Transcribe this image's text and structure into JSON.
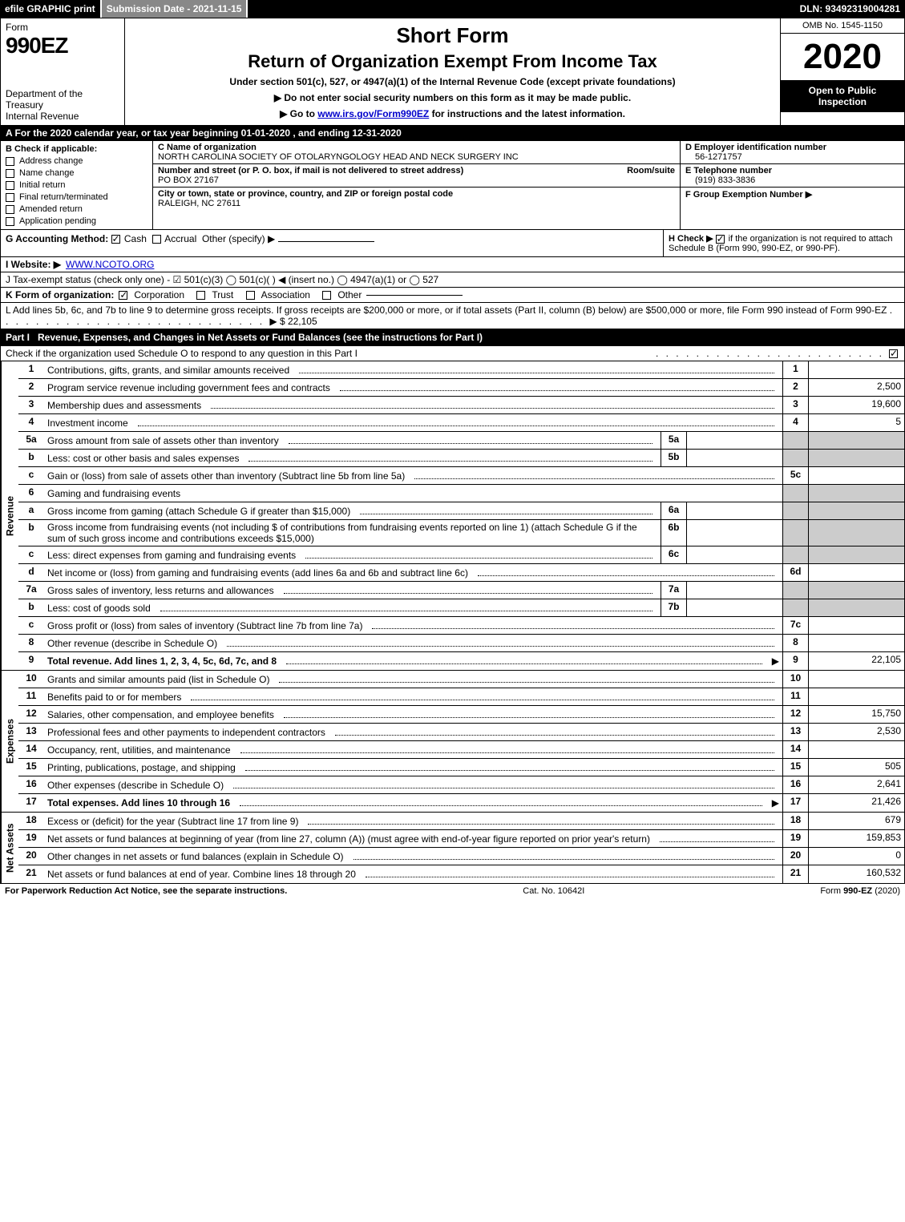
{
  "topbar": {
    "efile": "efile GRAPHIC print",
    "submission": "Submission Date - 2021-11-15",
    "dln": "DLN: 93492319004281"
  },
  "header": {
    "form_word": "Form",
    "form_number": "990EZ",
    "dept": "Department of the Treasury",
    "irs": "Internal Revenue",
    "short_form": "Short Form",
    "title": "Return of Organization Exempt From Income Tax",
    "subtitle": "Under section 501(c), 527, or 4947(a)(1) of the Internal Revenue Code (except private foundations)",
    "warn": "▶ Do not enter social security numbers on this form as it may be made public.",
    "goto_pre": "▶ Go to ",
    "goto_link": "www.irs.gov/Form990EZ",
    "goto_post": " for instructions and the latest information.",
    "omb": "OMB No. 1545-1150",
    "year": "2020",
    "open": "Open to Public Inspection"
  },
  "rowA": "A  For the 2020 calendar year, or tax year beginning 01-01-2020 , and ending 12-31-2020",
  "colB": {
    "hdr": "B  Check if applicable:",
    "items": [
      "Address change",
      "Name change",
      "Initial return",
      "Final return/terminated",
      "Amended return",
      "Application pending"
    ]
  },
  "colC": {
    "name_lbl": "C Name of organization",
    "name": "NORTH CAROLINA SOCIETY OF OTOLARYNGOLOGY HEAD AND NECK SURGERY INC",
    "addr_lbl": "Number and street (or P. O. box, if mail is not delivered to street address)",
    "room_lbl": "Room/suite",
    "addr": "PO BOX 27167",
    "city_lbl": "City or town, state or province, country, and ZIP or foreign postal code",
    "city": "RALEIGH, NC  27611"
  },
  "colDE": {
    "d_lbl": "D Employer identification number",
    "d_val": "56-1271757",
    "e_lbl": "E Telephone number",
    "e_val": "(919) 833-3836",
    "f_lbl": "F Group Exemption Number  ▶"
  },
  "lineG": {
    "pre": "G Accounting Method:",
    "cash": "Cash",
    "accrual": "Accrual",
    "other": "Other (specify) ▶"
  },
  "lineH": {
    "text": "H  Check ▶",
    "tail": "if the organization is not required to attach Schedule B (Form 990, 990-EZ, or 990-PF)."
  },
  "lineI": {
    "pre": "I Website: ▶",
    "link": "WWW.NCOTO.ORG"
  },
  "lineJ": "J Tax-exempt status (check only one) - ☑ 501(c)(3)  ◯ 501(c)(  ) ◀ (insert no.)  ◯ 4947(a)(1) or  ◯ 527",
  "lineK": {
    "pre": "K Form of organization:",
    "opts": [
      "Corporation",
      "Trust",
      "Association",
      "Other"
    ]
  },
  "lineL": {
    "text": "L Add lines 5b, 6c, and 7b to line 9 to determine gross receipts. If gross receipts are $200,000 or more, or if total assets (Part II, column (B) below) are $500,000 or more, file Form 990 instead of Form 990-EZ",
    "amount": "▶ $ 22,105"
  },
  "partI": {
    "tag": "Part I",
    "title": "Revenue, Expenses, and Changes in Net Assets or Fund Balances (see the instructions for Part I)",
    "check": "Check if the organization used Schedule O to respond to any question in this Part I"
  },
  "sections": {
    "revenue": "Revenue",
    "expenses": "Expenses",
    "netassets": "Net Assets"
  },
  "rows": [
    {
      "n": "1",
      "d": "Contributions, gifts, grants, and similar amounts received",
      "ln": "1",
      "amt": ""
    },
    {
      "n": "2",
      "d": "Program service revenue including government fees and contracts",
      "ln": "2",
      "amt": "2,500"
    },
    {
      "n": "3",
      "d": "Membership dues and assessments",
      "ln": "3",
      "amt": "19,600"
    },
    {
      "n": "4",
      "d": "Investment income",
      "ln": "4",
      "amt": "5"
    },
    {
      "n": "5a",
      "d": "Gross amount from sale of assets other than inventory",
      "sub": "5a",
      "subamt": ""
    },
    {
      "n": "b",
      "d": "Less: cost or other basis and sales expenses",
      "sub": "5b",
      "subamt": ""
    },
    {
      "n": "c",
      "d": "Gain or (loss) from sale of assets other than inventory (Subtract line 5b from line 5a)",
      "ln": "5c",
      "amt": ""
    },
    {
      "n": "6",
      "d": "Gaming and fundraising events",
      "plain": true
    },
    {
      "n": "a",
      "d": "Gross income from gaming (attach Schedule G if greater than $15,000)",
      "sub": "6a",
      "subamt": ""
    },
    {
      "n": "b",
      "d": "Gross income from fundraising events (not including $                       of contributions from fundraising events reported on line 1) (attach Schedule G if the sum of such gross income and contributions exceeds $15,000)",
      "sub": "6b",
      "subamt": ""
    },
    {
      "n": "c",
      "d": "Less: direct expenses from gaming and fundraising events",
      "sub": "6c",
      "subamt": ""
    },
    {
      "n": "d",
      "d": "Net income or (loss) from gaming and fundraising events (add lines 6a and 6b and subtract line 6c)",
      "ln": "6d",
      "amt": ""
    },
    {
      "n": "7a",
      "d": "Gross sales of inventory, less returns and allowances",
      "sub": "7a",
      "subamt": ""
    },
    {
      "n": "b",
      "d": "Less: cost of goods sold",
      "sub": "7b",
      "subamt": ""
    },
    {
      "n": "c",
      "d": "Gross profit or (loss) from sales of inventory (Subtract line 7b from line 7a)",
      "ln": "7c",
      "amt": ""
    },
    {
      "n": "8",
      "d": "Other revenue (describe in Schedule O)",
      "ln": "8",
      "amt": ""
    },
    {
      "n": "9",
      "d": "Total revenue. Add lines 1, 2, 3, 4, 5c, 6d, 7c, and 8",
      "ln": "9",
      "amt": "22,105",
      "bold": true,
      "arrow": true
    }
  ],
  "exp_rows": [
    {
      "n": "10",
      "d": "Grants and similar amounts paid (list in Schedule O)",
      "ln": "10",
      "amt": ""
    },
    {
      "n": "11",
      "d": "Benefits paid to or for members",
      "ln": "11",
      "amt": ""
    },
    {
      "n": "12",
      "d": "Salaries, other compensation, and employee benefits",
      "ln": "12",
      "amt": "15,750"
    },
    {
      "n": "13",
      "d": "Professional fees and other payments to independent contractors",
      "ln": "13",
      "amt": "2,530"
    },
    {
      "n": "14",
      "d": "Occupancy, rent, utilities, and maintenance",
      "ln": "14",
      "amt": ""
    },
    {
      "n": "15",
      "d": "Printing, publications, postage, and shipping",
      "ln": "15",
      "amt": "505"
    },
    {
      "n": "16",
      "d": "Other expenses (describe in Schedule O)",
      "ln": "16",
      "amt": "2,641"
    },
    {
      "n": "17",
      "d": "Total expenses. Add lines 10 through 16",
      "ln": "17",
      "amt": "21,426",
      "bold": true,
      "arrow": true
    }
  ],
  "na_rows": [
    {
      "n": "18",
      "d": "Excess or (deficit) for the year (Subtract line 17 from line 9)",
      "ln": "18",
      "amt": "679"
    },
    {
      "n": "19",
      "d": "Net assets or fund balances at beginning of year (from line 27, column (A)) (must agree with end-of-year figure reported on prior year's return)",
      "ln": "19",
      "amt": "159,853"
    },
    {
      "n": "20",
      "d": "Other changes in net assets or fund balances (explain in Schedule O)",
      "ln": "20",
      "amt": "0"
    },
    {
      "n": "21",
      "d": "Net assets or fund balances at end of year. Combine lines 18 through 20",
      "ln": "21",
      "amt": "160,532"
    }
  ],
  "footer": {
    "left": "For Paperwork Reduction Act Notice, see the separate instructions.",
    "mid": "Cat. No. 10642I",
    "right_pre": "Form ",
    "right_form": "990-EZ",
    "right_post": " (2020)"
  },
  "colors": {
    "black": "#000000",
    "grey": "#cccccc",
    "link": "#0000cc"
  }
}
